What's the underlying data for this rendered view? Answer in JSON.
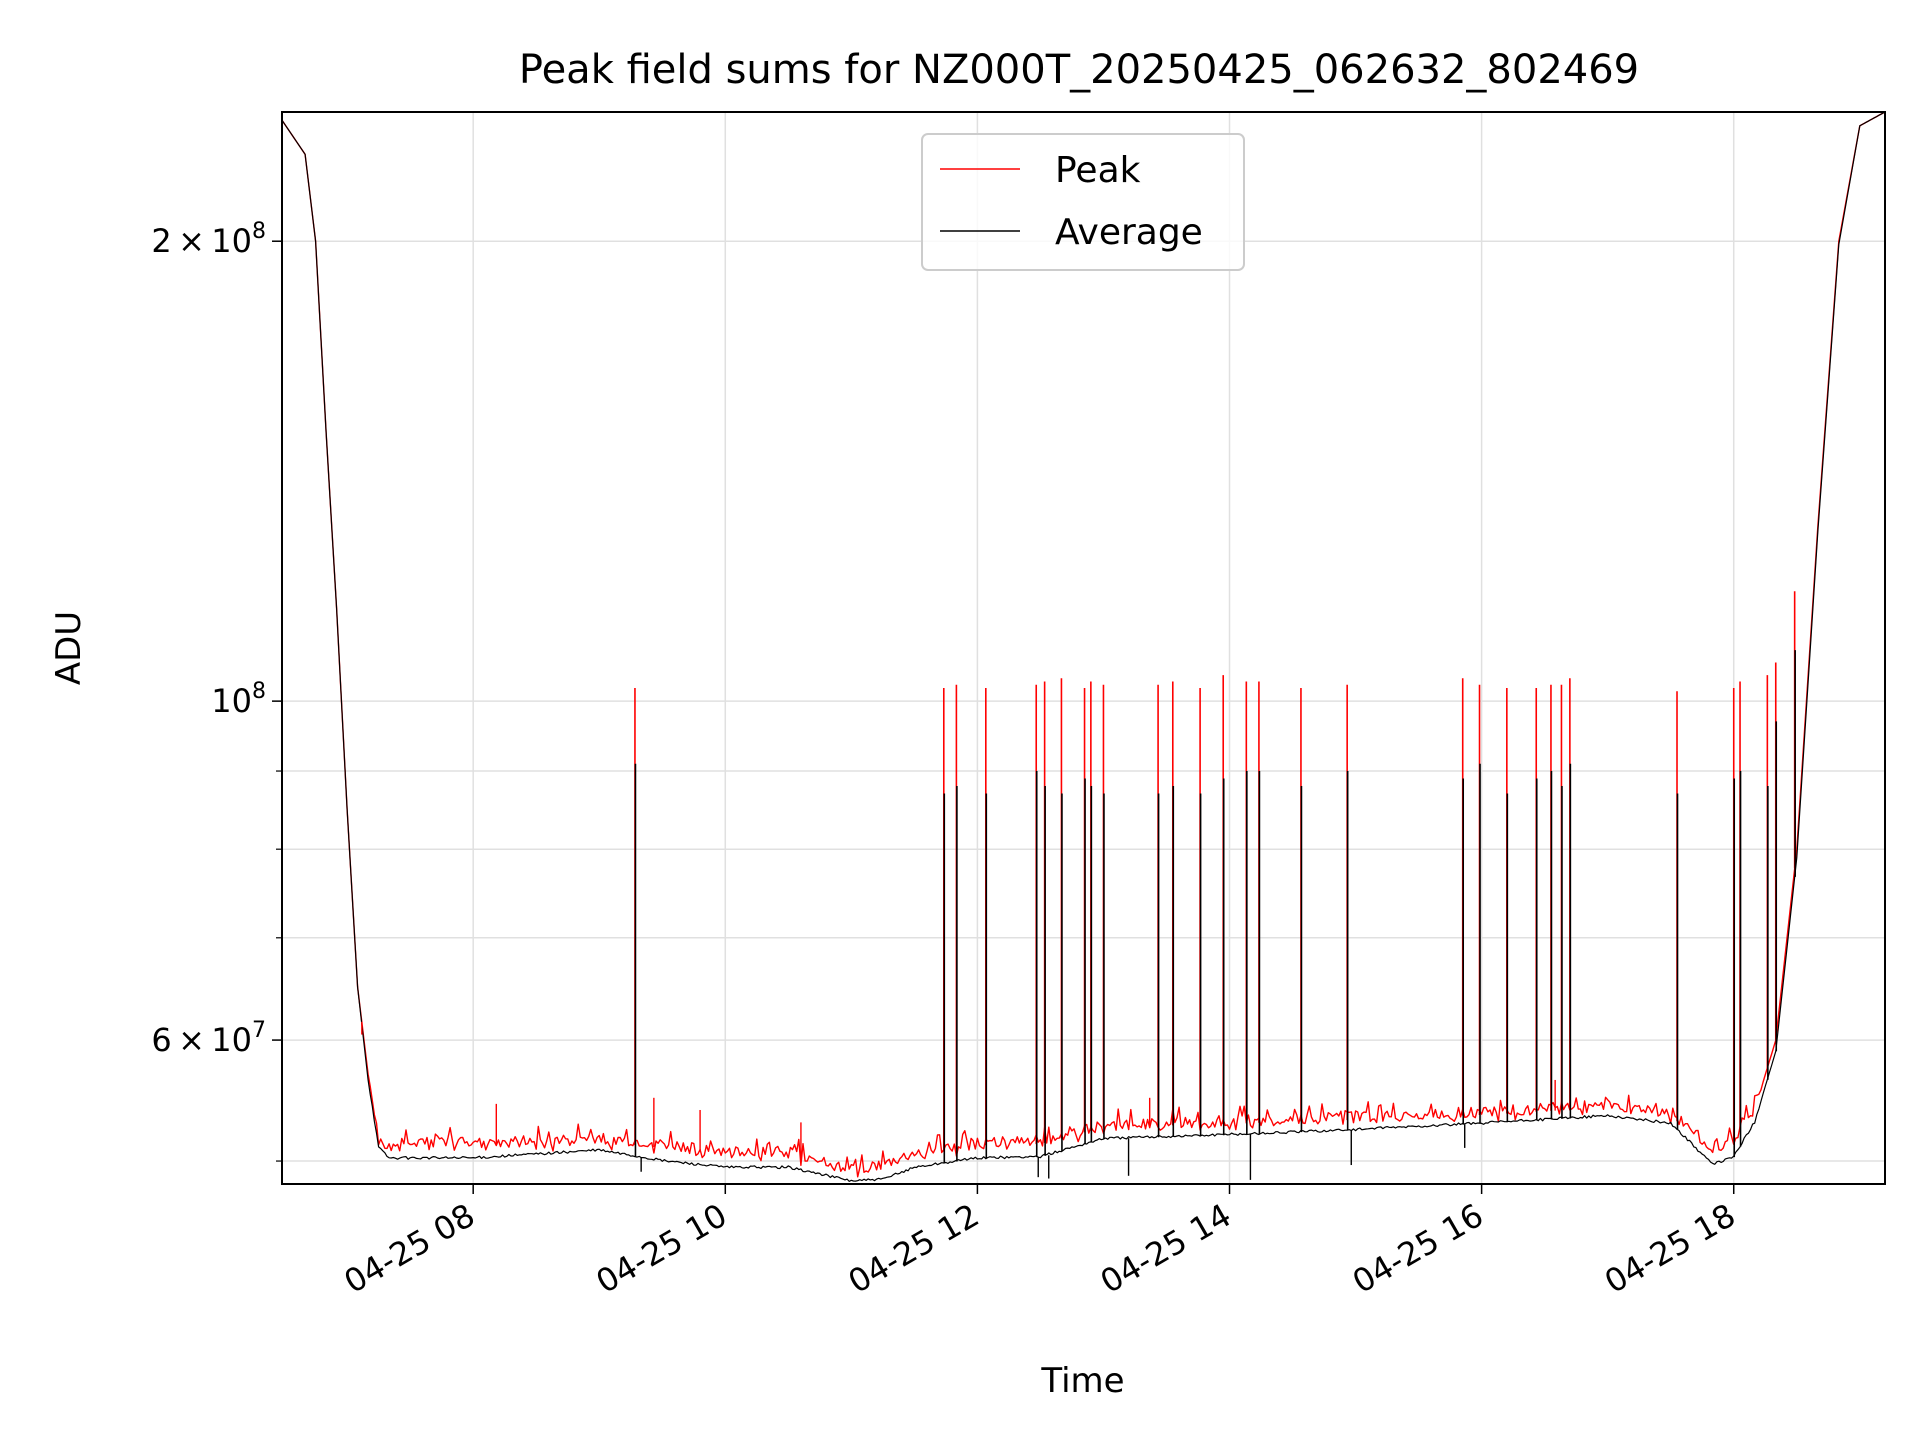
{
  "chart_data": {
    "type": "line",
    "title": "Peak field sums for NZ000T_20250425_062632_802469",
    "xlabel": "Time",
    "ylabel": "ADU",
    "y_scale": "log",
    "grid": true,
    "legend_position": "upper center",
    "xlim": [
      "2025-04-25 06:29",
      "2025-04-25 19:12"
    ],
    "ylim": [
      48300000,
      243000000
    ],
    "x_ticks": [
      {
        "value": "2025-04-25 08:00",
        "label": "04-25 08"
      },
      {
        "value": "2025-04-25 10:00",
        "label": "04-25 10"
      },
      {
        "value": "2025-04-25 12:00",
        "label": "04-25 12"
      },
      {
        "value": "2025-04-25 14:00",
        "label": "04-25 14"
      },
      {
        "value": "2025-04-25 16:00",
        "label": "04-25 16"
      },
      {
        "value": "2025-04-25 18:00",
        "label": "04-25 18"
      }
    ],
    "y_ticks": [
      {
        "value": 200000000,
        "base": "2 × 10",
        "exp": "8"
      },
      {
        "value": 100000000,
        "base": "10",
        "exp": "8"
      },
      {
        "value": 60000000,
        "base": "6 × 10",
        "exp": "7"
      }
    ],
    "y_minor_ticks": [
      50000000,
      70000000,
      80000000,
      90000000
    ],
    "series": [
      {
        "name": "Peak",
        "color": "#ff0000",
        "x": [
          "2025-04-25 06:29",
          "2025-04-25 06:40",
          "2025-04-25 06:45",
          "2025-04-25 06:50",
          "2025-04-25 06:55",
          "2025-04-25 07:00",
          "2025-04-25 07:05",
          "2025-04-25 07:10",
          "2025-04-25 07:15",
          "2025-04-25 07:20",
          "2025-04-25 07:30",
          "2025-04-25 08:00",
          "2025-04-25 08:30",
          "2025-04-25 09:00",
          "2025-04-25 09:30",
          "2025-04-25 10:00",
          "2025-04-25 10:30",
          "2025-04-25 11:00",
          "2025-04-25 11:15",
          "2025-04-25 11:30",
          "2025-04-25 12:00",
          "2025-04-25 12:30",
          "2025-04-25 13:00",
          "2025-04-25 14:00",
          "2025-04-25 15:00",
          "2025-04-25 16:00",
          "2025-04-25 17:00",
          "2025-04-25 17:30",
          "2025-04-25 17:50",
          "2025-04-25 18:00",
          "2025-04-25 18:10",
          "2025-04-25 18:20",
          "2025-04-25 18:30",
          "2025-04-25 18:40",
          "2025-04-25 18:50",
          "2025-04-25 19:00",
          "2025-04-25 19:12"
        ],
        "y": [
          240000000,
          228000000,
          200000000,
          150000000,
          115000000,
          85000000,
          65000000,
          57000000,
          51500000,
          50700000,
          51300000,
          51300000,
          51300000,
          51500000,
          51000000,
          50500000,
          50500000,
          49200000,
          49400000,
          50300000,
          51200000,
          51300000,
          52600000,
          52900000,
          53200000,
          53600000,
          54200000,
          53500000,
          50800000,
          51500000,
          54000000,
          60000000,
          80000000,
          130000000,
          200000000,
          238000000,
          243000000
        ]
      },
      {
        "name": "Average",
        "color": "#000000",
        "x": [
          "2025-04-25 06:29",
          "2025-04-25 06:40",
          "2025-04-25 06:45",
          "2025-04-25 06:50",
          "2025-04-25 06:55",
          "2025-04-25 07:00",
          "2025-04-25 07:05",
          "2025-04-25 07:10",
          "2025-04-25 07:15",
          "2025-04-25 07:20",
          "2025-04-25 07:30",
          "2025-04-25 08:00",
          "2025-04-25 08:30",
          "2025-04-25 09:00",
          "2025-04-25 09:30",
          "2025-04-25 10:00",
          "2025-04-25 10:30",
          "2025-04-25 11:00",
          "2025-04-25 11:15",
          "2025-04-25 11:30",
          "2025-04-25 12:00",
          "2025-04-25 12:30",
          "2025-04-25 13:00",
          "2025-04-25 14:00",
          "2025-04-25 15:00",
          "2025-04-25 16:00",
          "2025-04-25 17:00",
          "2025-04-25 17:30",
          "2025-04-25 17:50",
          "2025-04-25 18:00",
          "2025-04-25 18:10",
          "2025-04-25 18:20",
          "2025-04-25 18:30",
          "2025-04-25 18:40",
          "2025-04-25 18:50",
          "2025-04-25 19:00",
          "2025-04-25 19:12"
        ],
        "y": [
          240000000,
          228000000,
          200000000,
          150000000,
          115000000,
          85000000,
          65000000,
          56500000,
          51000000,
          50200000,
          50200000,
          50200000,
          50500000,
          50800000,
          50000000,
          49500000,
          49500000,
          48500000,
          48600000,
          49500000,
          50200000,
          50300000,
          51700000,
          52000000,
          52400000,
          52900000,
          53500000,
          52900000,
          49700000,
          50300000,
          53000000,
          59000000,
          79000000,
          129000000,
          199000000,
          238000000,
          243000000
        ]
      }
    ],
    "spikes": [
      {
        "x": "2025-04-25 09:17",
        "peak": 102000000,
        "average": 91000000
      },
      {
        "x": "2025-04-25 11:44",
        "peak": 102000000,
        "average": 87000000
      },
      {
        "x": "2025-04-25 11:50",
        "peak": 102500000,
        "average": 88000000
      },
      {
        "x": "2025-04-25 12:04",
        "peak": 102000000,
        "average": 87000000
      },
      {
        "x": "2025-04-25 12:28",
        "peak": 102500000,
        "average": 90000000
      },
      {
        "x": "2025-04-25 12:32",
        "peak": 103000000,
        "average": 88000000
      },
      {
        "x": "2025-04-25 12:40",
        "peak": 103500000,
        "average": 87000000
      },
      {
        "x": "2025-04-25 12:51",
        "peak": 102000000,
        "average": 89000000
      },
      {
        "x": "2025-04-25 12:54",
        "peak": 103000000,
        "average": 88000000
      },
      {
        "x": "2025-04-25 13:00",
        "peak": 102500000,
        "average": 87000000
      },
      {
        "x": "2025-04-25 13:26",
        "peak": 102500000,
        "average": 87000000
      },
      {
        "x": "2025-04-25 13:33",
        "peak": 103000000,
        "average": 88000000
      },
      {
        "x": "2025-04-25 13:46",
        "peak": 102000000,
        "average": 87000000
      },
      {
        "x": "2025-04-25 13:57",
        "peak": 104000000,
        "average": 89000000
      },
      {
        "x": "2025-04-25 14:08",
        "peak": 103000000,
        "average": 90000000
      },
      {
        "x": "2025-04-25 14:14",
        "peak": 103000000,
        "average": 90000000
      },
      {
        "x": "2025-04-25 14:34",
        "peak": 102000000,
        "average": 88000000
      },
      {
        "x": "2025-04-25 14:56",
        "peak": 102500000,
        "average": 90000000
      },
      {
        "x": "2025-04-25 15:51",
        "peak": 103500000,
        "average": 89000000
      },
      {
        "x": "2025-04-25 15:59",
        "peak": 102500000,
        "average": 91000000
      },
      {
        "x": "2025-04-25 16:12",
        "peak": 102000000,
        "average": 87000000
      },
      {
        "x": "2025-04-25 16:26",
        "peak": 102000000,
        "average": 89000000
      },
      {
        "x": "2025-04-25 16:33",
        "peak": 102500000,
        "average": 90000000
      },
      {
        "x": "2025-04-25 16:38",
        "peak": 102500000,
        "average": 88000000
      },
      {
        "x": "2025-04-25 16:42",
        "peak": 103500000,
        "average": 91000000
      },
      {
        "x": "2025-04-25 17:33",
        "peak": 101500000,
        "average": 87000000
      },
      {
        "x": "2025-04-25 18:00",
        "peak": 102000000,
        "average": 89000000
      },
      {
        "x": "2025-04-25 18:03",
        "peak": 103000000,
        "average": 90000000
      },
      {
        "x": "2025-04-25 18:16",
        "peak": 104000000,
        "average": 88000000
      },
      {
        "x": "2025-04-25 18:20",
        "peak": 106000000,
        "average": 97000000
      },
      {
        "x": "2025-04-25 18:29",
        "peak": 118000000,
        "average": 108000000
      }
    ],
    "small_spikes": [
      {
        "x": "2025-04-25 07:07",
        "peak": 60500000
      },
      {
        "x": "2025-04-25 08:11",
        "peak": 54500000
      },
      {
        "x": "2025-04-25 09:26",
        "peak": 55000000
      },
      {
        "x": "2025-04-25 09:48",
        "peak": 54000000
      },
      {
        "x": "2025-04-25 10:36",
        "peak": 53000000
      },
      {
        "x": "2025-04-25 13:22",
        "peak": 55000000
      },
      {
        "x": "2025-04-25 16:35",
        "peak": 56500000
      }
    ],
    "dips": [
      {
        "x": "2025-04-25 09:19",
        "average": 49200000
      },
      {
        "x": "2025-04-25 12:28",
        "average": 48800000
      },
      {
        "x": "2025-04-25 12:33",
        "average": 48700000
      },
      {
        "x": "2025-04-25 13:11",
        "average": 48900000
      },
      {
        "x": "2025-04-25 14:09",
        "average": 48600000
      },
      {
        "x": "2025-04-25 14:57",
        "average": 49700000
      },
      {
        "x": "2025-04-25 15:51",
        "average": 51000000
      }
    ]
  }
}
